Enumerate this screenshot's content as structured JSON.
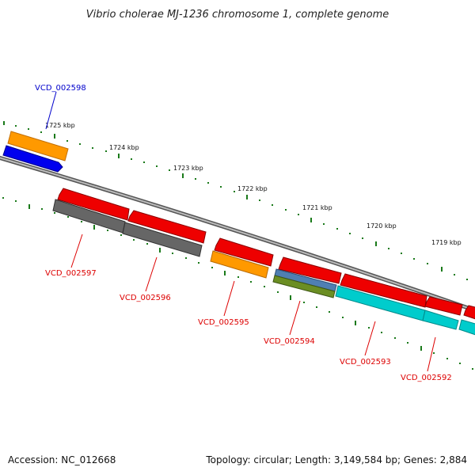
{
  "title": "Vibrio cholerae MJ-1236 chromosome 1, complete genome",
  "footer": {
    "accession": "Accession: NC_012668",
    "summary": "Topology: circular; Length: 3,149,584 bp; Genes: 2,884"
  },
  "kbp_labels": [
    "1725 kbp",
    "1724 kbp",
    "1723 kbp",
    "1722 kbp",
    "1721 kbp",
    "1720 kbp",
    "1719 kbp"
  ],
  "genes": [
    {
      "id": "VCD_002598",
      "color": "#0000cc"
    },
    {
      "id": "VCD_002597",
      "color": "#dd0000"
    },
    {
      "id": "VCD_002596",
      "color": "#dd0000"
    },
    {
      "id": "VCD_002595",
      "color": "#dd0000"
    },
    {
      "id": "VCD_002594",
      "color": "#dd0000"
    },
    {
      "id": "VCD_002593",
      "color": "#dd0000"
    },
    {
      "id": "VCD_002592",
      "color": "#dd0000"
    }
  ],
  "colors": {
    "backbone": "#8a8a8a",
    "tick": "#1a7a1a",
    "cds_red": "#ee0000",
    "cds_blue": "#0000ee",
    "orange": "#ff9900",
    "gray": "#666666",
    "cyan": "#00cccc",
    "steel_blue": "#4f7fb2",
    "olive": "#6b8e23"
  }
}
